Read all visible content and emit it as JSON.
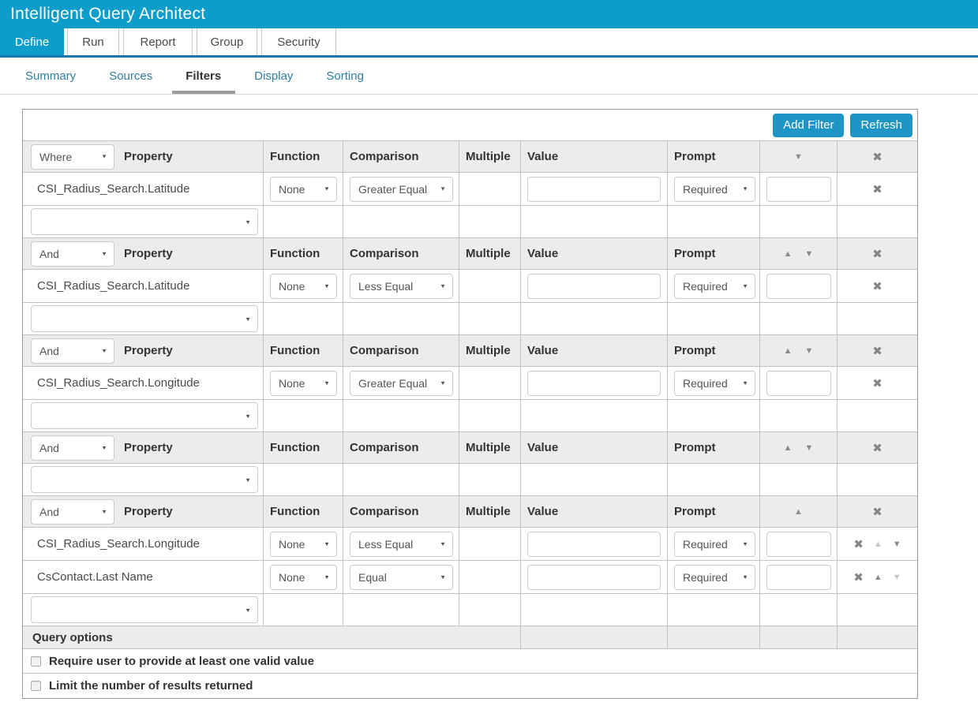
{
  "app": {
    "title": "Intelligent Query Architect"
  },
  "colors": {
    "brand_cyan": "#0d9dcb",
    "nav_underline_blue": "#1478ad",
    "button_blue": "#1d95c5",
    "subtab_link_blue": "#2d7fa5",
    "group_header_bg": "#ececec",
    "icon_gray": "#8c8c8c",
    "icon_disabled_gray": "#c6c6c6"
  },
  "icons": {
    "select_caret": "▼",
    "remove": "✖",
    "move_up": "▲",
    "move_down": "▼"
  },
  "nav": {
    "tabs": [
      {
        "label": "Define",
        "active": true
      },
      {
        "label": "Run",
        "active": false
      },
      {
        "label": "Report",
        "active": false
      },
      {
        "label": "Group",
        "active": false
      },
      {
        "label": "Security",
        "active": false
      }
    ]
  },
  "subnav": {
    "tabs": [
      {
        "label": "Summary",
        "active": false
      },
      {
        "label": "Sources",
        "active": false
      },
      {
        "label": "Filters",
        "active": true
      },
      {
        "label": "Display",
        "active": false
      },
      {
        "label": "Sorting",
        "active": false
      }
    ]
  },
  "toolbar": {
    "add_filter_label": "Add Filter",
    "refresh_label": "Refresh"
  },
  "table": {
    "headers": {
      "property": "Property",
      "function": "Function",
      "comparison": "Comparison",
      "multiple": "Multiple",
      "value": "Value",
      "prompt": "Prompt"
    },
    "groups": [
      {
        "conjunction": "Where",
        "move": {
          "up": false,
          "down": true
        },
        "rows": [
          {
            "property": "CSI_Radius_Search.Latitude",
            "function": "None",
            "comparison": "Greater Equal",
            "value": "",
            "prompt": "Required",
            "order": ""
          }
        ]
      },
      {
        "conjunction": "And",
        "move": {
          "up": true,
          "down": true
        },
        "rows": [
          {
            "property": "CSI_Radius_Search.Latitude",
            "function": "None",
            "comparison": "Less Equal",
            "value": "",
            "prompt": "Required",
            "order": ""
          }
        ]
      },
      {
        "conjunction": "And",
        "move": {
          "up": true,
          "down": true
        },
        "rows": [
          {
            "property": "CSI_Radius_Search.Longitude",
            "function": "None",
            "comparison": "Greater Equal",
            "value": "",
            "prompt": "Required",
            "order": ""
          }
        ]
      },
      {
        "conjunction": "And",
        "move": {
          "up": true,
          "down": true
        },
        "rows": []
      },
      {
        "conjunction": "And",
        "move": {
          "up": true,
          "down": false
        },
        "rows": [
          {
            "property": "CSI_Radius_Search.Longitude",
            "function": "None",
            "comparison": "Less Equal",
            "value": "",
            "prompt": "Required",
            "order": "",
            "row_move": {
              "up": false,
              "down": true
            }
          },
          {
            "property": "CsContact.Last Name",
            "function": "None",
            "comparison": "Equal",
            "value": "",
            "prompt": "Required",
            "order": "",
            "row_move": {
              "up": true,
              "down": false
            }
          }
        ]
      }
    ]
  },
  "query_options": {
    "title": "Query options",
    "options": [
      {
        "label": "Require user to provide at least one valid value",
        "checked": false
      },
      {
        "label": "Limit the number of results returned",
        "checked": false
      }
    ]
  }
}
